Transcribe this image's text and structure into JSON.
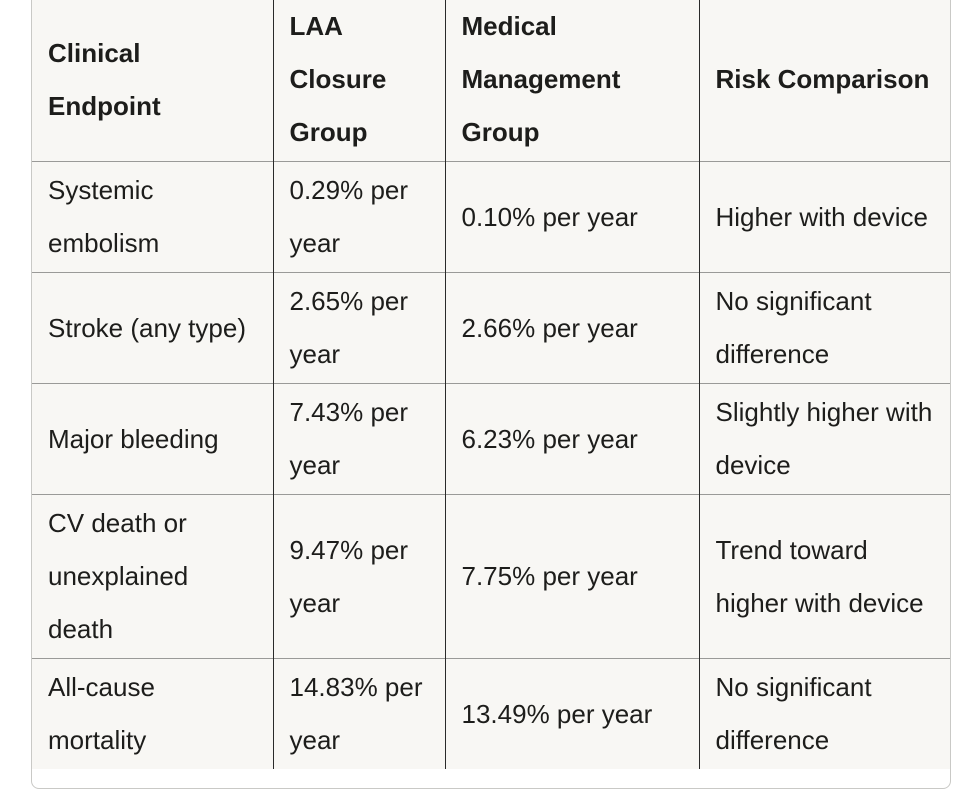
{
  "table": {
    "headers": [
      "Clinical Endpoint",
      "LAA Closure Group",
      "Medical Management Group",
      "Risk Comparison"
    ],
    "rows": [
      [
        "Systemic embolism",
        "0.29% per year",
        "0.10% per year",
        "Higher with device"
      ],
      [
        "Stroke (any type)",
        "2.65% per year",
        "2.66% per year",
        "No significant difference"
      ],
      [
        "Major bleeding",
        "7.43% per year",
        "6.23% per year",
        "Slightly higher with device"
      ],
      [
        "CV death or unexplained death",
        "9.47% per year",
        "7.75% per year",
        "Trend toward higher with device"
      ],
      [
        "All-cause mortality",
        "14.83% per year",
        "13.49% per year",
        "No significant difference"
      ]
    ]
  }
}
